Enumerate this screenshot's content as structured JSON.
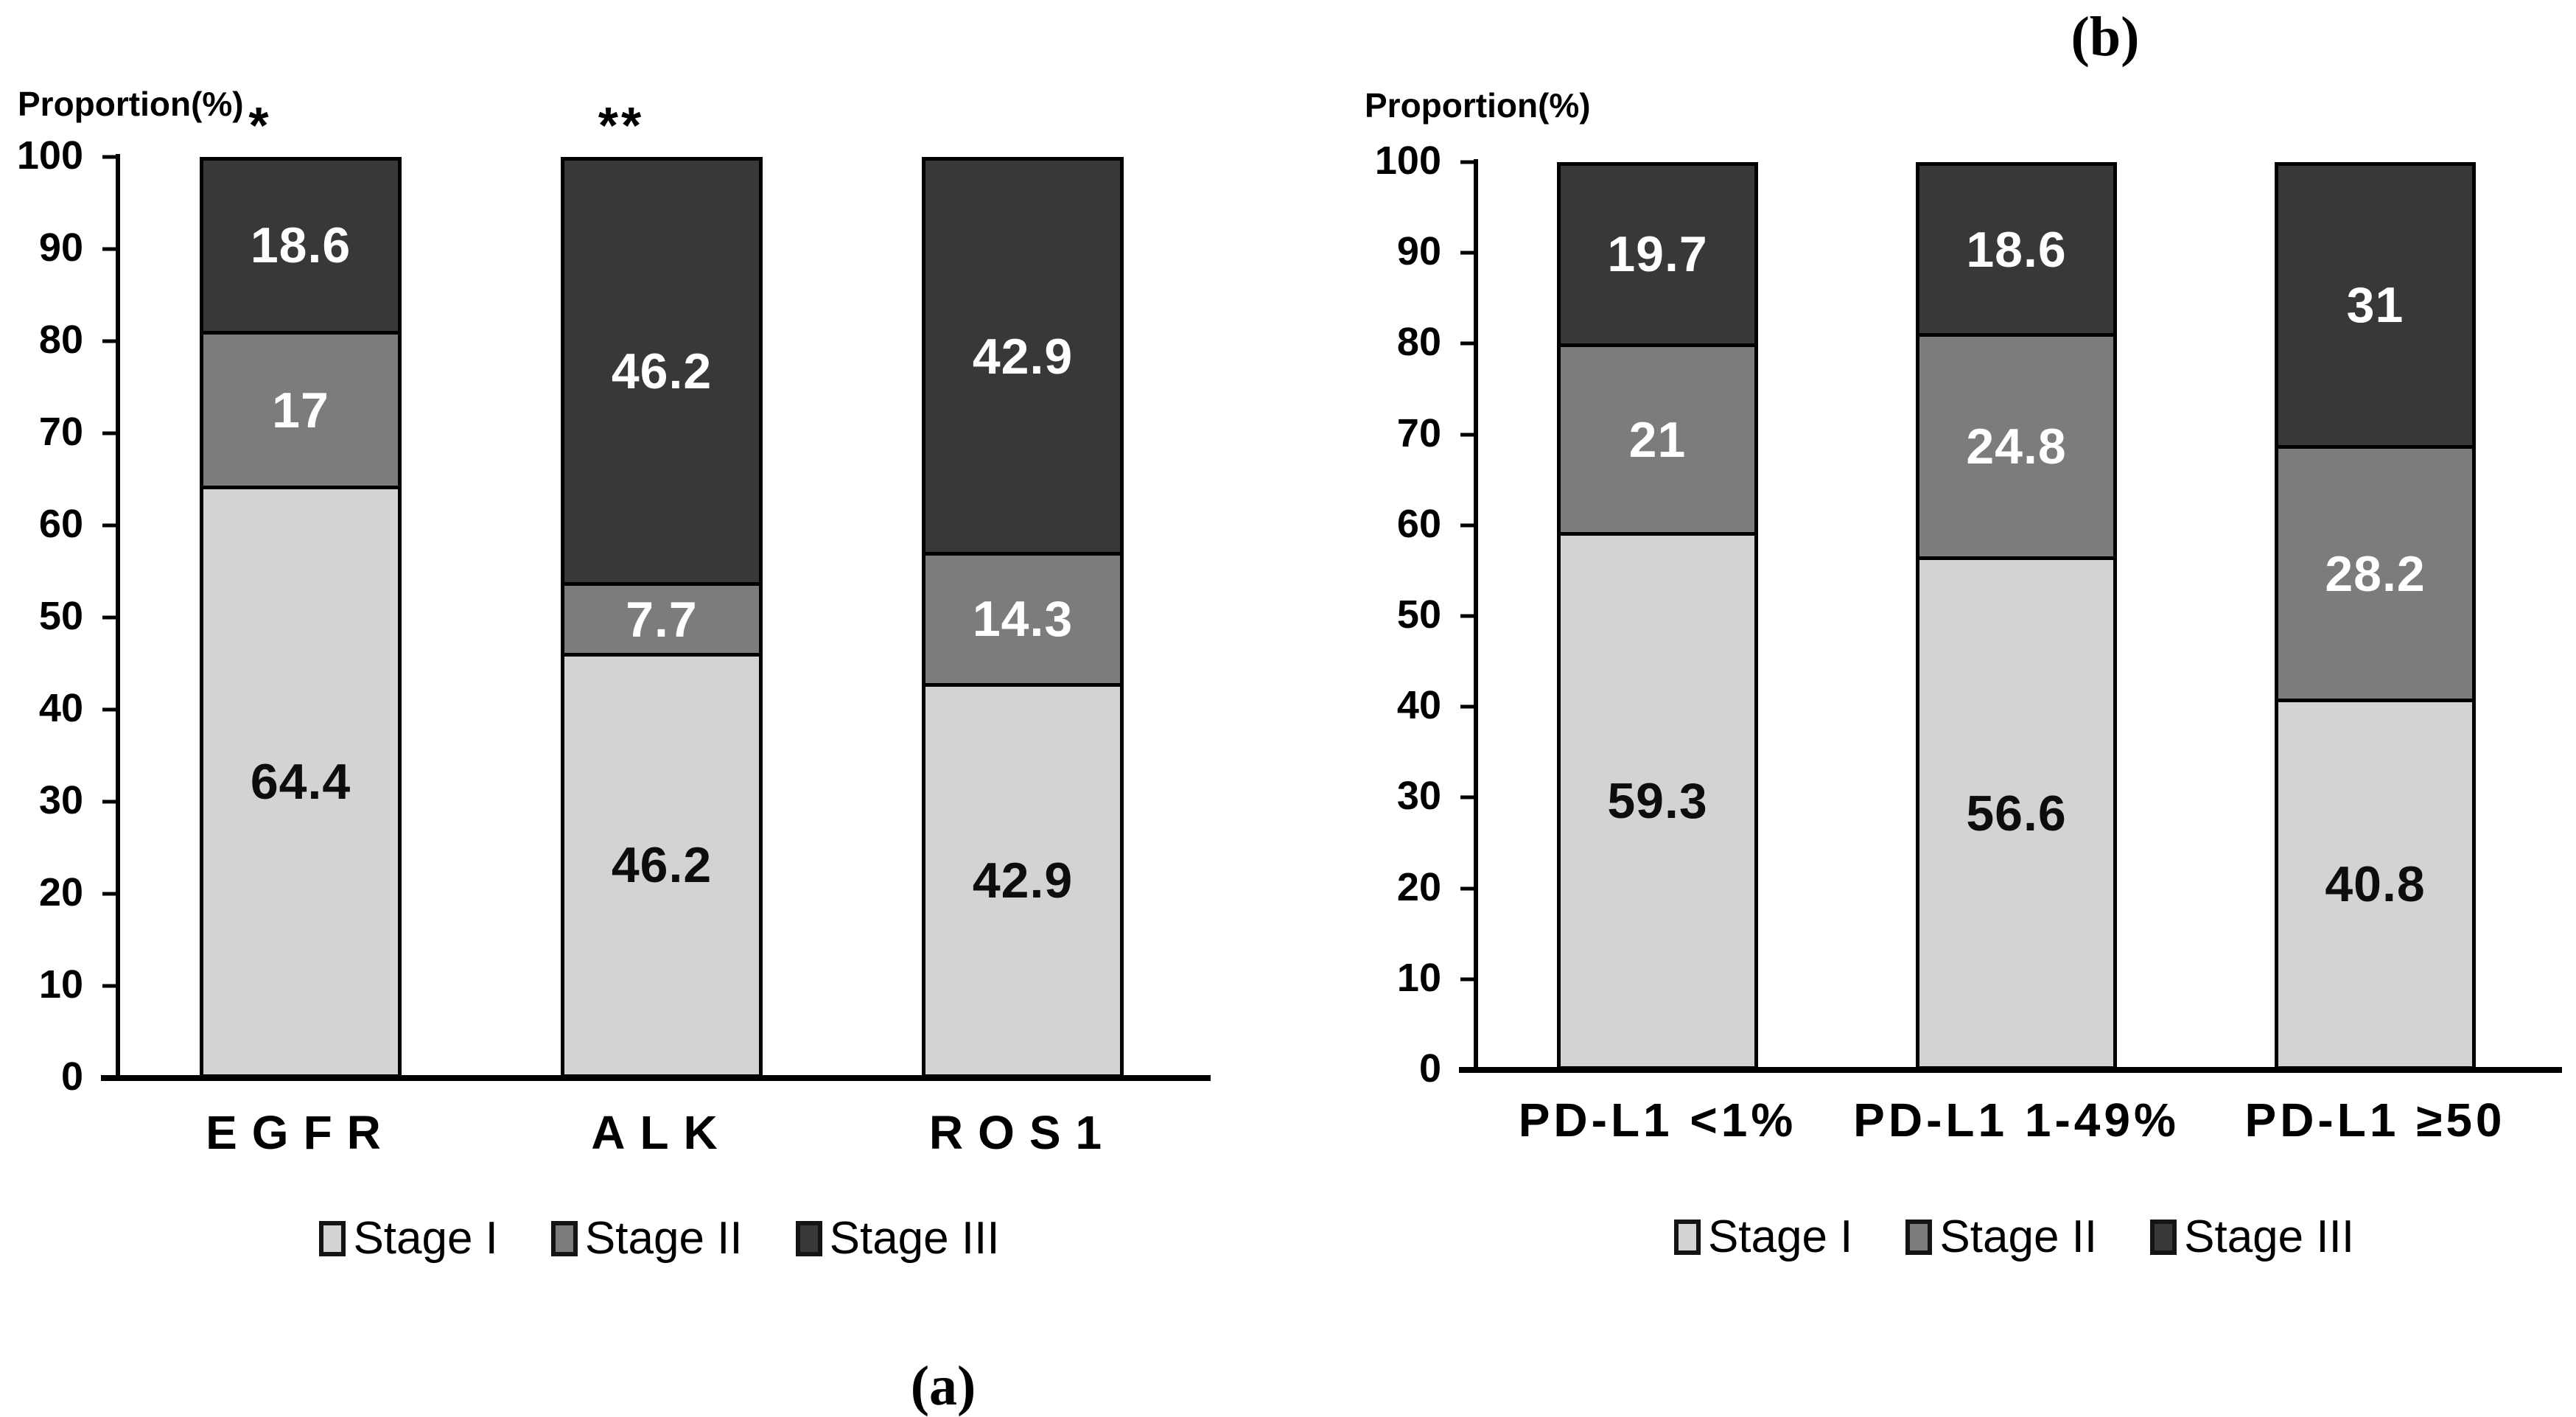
{
  "chart_data": [
    {
      "type": "bar",
      "stacked": true,
      "panel_label": "(a)",
      "axis_title": "Proportion(%)",
      "ylabel": "Proportion(%)",
      "ylim": [
        0,
        100
      ],
      "y_ticks": [
        0,
        10,
        20,
        30,
        40,
        50,
        60,
        70,
        80,
        90,
        100
      ],
      "grid": false,
      "legend_position": "bottom",
      "categories": [
        "EGFR",
        "ALK",
        "ROS1"
      ],
      "annotations": [
        "*",
        "**",
        ""
      ],
      "series": [
        {
          "name": "Stage I",
          "color": "#d3d3d3",
          "label_color": "#0d0d0d",
          "values": [
            64.4,
            46.2,
            42.9
          ]
        },
        {
          "name": "Stage II",
          "color": "#7c7c7c",
          "label_color": "#ffffff",
          "values": [
            17,
            7.7,
            14.3
          ]
        },
        {
          "name": "Stage III",
          "color": "#383838",
          "label_color": "#ffffff",
          "values": [
            18.6,
            46.2,
            42.9
          ]
        }
      ]
    },
    {
      "type": "bar",
      "stacked": true,
      "panel_label": "(b)",
      "axis_title": "Proportion(%)",
      "ylabel": "Proportion(%)",
      "ylim": [
        0,
        100
      ],
      "y_ticks": [
        0,
        10,
        20,
        30,
        40,
        50,
        60,
        70,
        80,
        90,
        100
      ],
      "grid": false,
      "legend_position": "bottom",
      "categories": [
        "PD-L1 <1%",
        "PD-L1 1-49%",
        "PD-L1 ≥50"
      ],
      "annotations": [
        "",
        "",
        ""
      ],
      "series": [
        {
          "name": "Stage I",
          "color": "#d3d3d3",
          "label_color": "#0d0d0d",
          "values": [
            59.3,
            56.6,
            40.8
          ]
        },
        {
          "name": "Stage II",
          "color": "#7c7c7c",
          "label_color": "#ffffff",
          "values": [
            21,
            24.8,
            28.2
          ]
        },
        {
          "name": "Stage III",
          "color": "#383838",
          "label_color": "#ffffff",
          "values": [
            19.7,
            18.6,
            31
          ]
        }
      ]
    }
  ]
}
